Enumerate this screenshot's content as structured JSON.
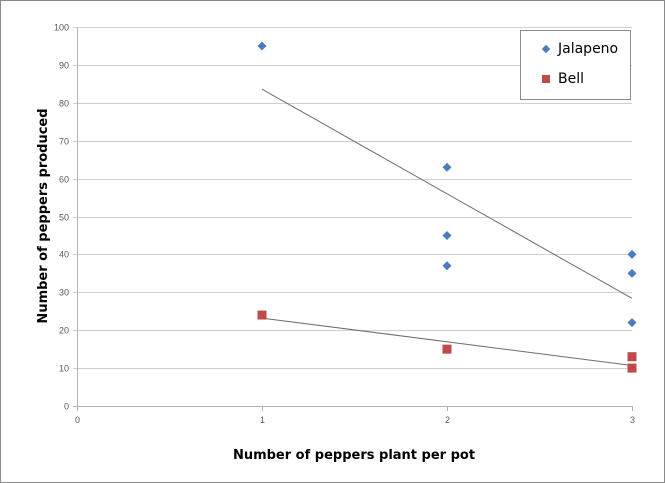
{
  "chart_data": {
    "type": "scatter",
    "title": "",
    "xlabel": "Number of peppers plant per pot",
    "ylabel": "Number of peppers produced",
    "xlim": [
      0,
      3
    ],
    "ylim": [
      0,
      100
    ],
    "x_ticks": [
      "0",
      "1",
      "2",
      "3"
    ],
    "y_ticks": [
      "0",
      "10",
      "20",
      "30",
      "40",
      "50",
      "60",
      "70",
      "80",
      "90",
      "100"
    ],
    "grid": "horizontal",
    "legend_position": "top-right",
    "series": [
      {
        "name": "Jalapeno",
        "marker": "diamond",
        "color": "#4a7ebb",
        "points": [
          [
            1,
            95
          ],
          [
            2,
            63
          ],
          [
            2,
            45
          ],
          [
            2,
            37
          ],
          [
            3,
            40
          ],
          [
            3,
            35
          ],
          [
            3,
            22
          ]
        ],
        "trendline": {
          "type": "linear",
          "from": [
            1,
            83.6
          ],
          "to": [
            3,
            28.4
          ]
        }
      },
      {
        "name": "Bell",
        "marker": "square",
        "color": "#be4b48",
        "points": [
          [
            1,
            24
          ],
          [
            2,
            15
          ],
          [
            3,
            13
          ],
          [
            3,
            10
          ]
        ],
        "trendline": {
          "type": "linear",
          "from": [
            1,
            23.2
          ],
          "to": [
            3,
            10.7
          ]
        }
      }
    ]
  },
  "legend": {
    "items": [
      {
        "label": "Jalapeno"
      },
      {
        "label": "Bell"
      }
    ]
  }
}
